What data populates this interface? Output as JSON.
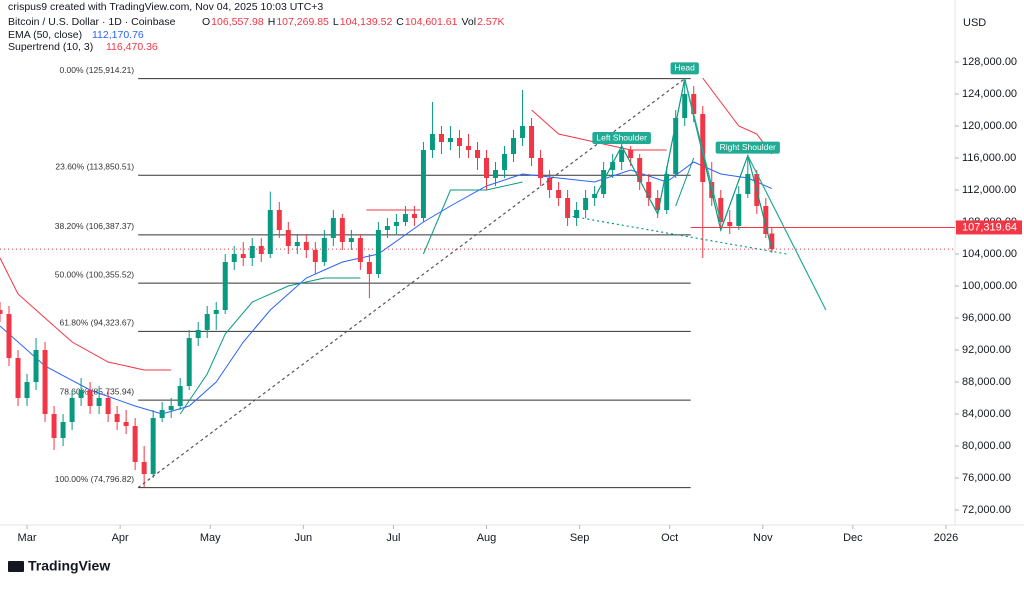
{
  "chart_data": {
    "type": "candlestick",
    "credit": "crispus9 created with TradingView.com, Nov 04, 2025 10:03 UTC+3",
    "symbol": "Bitcoin / U.S. Dollar · 1D · Coinbase",
    "ohlc_fields": [
      {
        "key": "O",
        "value": "106,557.98"
      },
      {
        "key": "H",
        "value": "107,269.85"
      },
      {
        "key": "L",
        "value": "104,139.52"
      },
      {
        "key": "C",
        "value": "104,601.61"
      },
      {
        "key": "Vol",
        "value": "2.57K"
      }
    ],
    "currency": "USD",
    "footer": "TradingView",
    "up_color": "#089981",
    "down_color": "#f23645",
    "xlim": [
      0,
      318
    ],
    "ylim": [
      70125,
      135750
    ],
    "xticks": [
      {
        "value": 9,
        "label": "Mar"
      },
      {
        "value": 40,
        "label": "Apr"
      },
      {
        "value": 70,
        "label": "May"
      },
      {
        "value": 101,
        "label": "Jun"
      },
      {
        "value": 131,
        "label": "Jul"
      },
      {
        "value": 162,
        "label": "Aug"
      },
      {
        "value": 193,
        "label": "Sep"
      },
      {
        "value": 223,
        "label": "Oct"
      },
      {
        "value": 254,
        "label": "Nov"
      },
      {
        "value": 284,
        "label": "Dec"
      },
      {
        "value": 315,
        "label": "2026"
      }
    ],
    "yticks": [
      {
        "value": 72000,
        "label": "72,000.00"
      },
      {
        "value": 76000,
        "label": "76,000.00"
      },
      {
        "value": 80000,
        "label": "80,000.00"
      },
      {
        "value": 84000,
        "label": "84,000.00"
      },
      {
        "value": 88000,
        "label": "88,000.00"
      },
      {
        "value": 92000,
        "label": "92,000.00"
      },
      {
        "value": 96000,
        "label": "96,000.00"
      },
      {
        "value": 100000,
        "label": "100,000.00"
      },
      {
        "value": 104000,
        "label": "104,000.00"
      },
      {
        "value": 108000,
        "label": "108,000.00"
      },
      {
        "value": 112000,
        "label": "112,000.00"
      },
      {
        "value": 116000,
        "label": "116,000.00"
      },
      {
        "value": 120000,
        "label": "120,000.00"
      },
      {
        "value": 124000,
        "label": "124,000.00"
      },
      {
        "value": 128000,
        "label": "128,000.00"
      }
    ],
    "grid": false,
    "x": [
      0,
      3,
      6,
      9,
      12,
      15,
      18,
      21,
      24,
      27,
      30,
      33,
      36,
      39,
      42,
      45,
      48,
      51,
      54,
      57,
      60,
      63,
      66,
      69,
      72,
      75,
      78,
      81,
      84,
      87,
      90,
      93,
      96,
      99,
      102,
      105,
      108,
      111,
      114,
      117,
      120,
      123,
      126,
      129,
      132,
      135,
      138,
      141,
      144,
      147,
      150,
      153,
      156,
      159,
      162,
      165,
      168,
      171,
      174,
      177,
      180,
      183,
      186,
      189,
      192,
      195,
      198,
      201,
      204,
      207,
      210,
      213,
      216,
      219,
      222,
      225,
      228,
      231,
      234,
      237,
      240,
      243,
      246,
      249,
      252,
      255,
      257
    ],
    "ohlc": [
      [
        97000,
        98000,
        95500,
        96500
      ],
      [
        96500,
        97500,
        90000,
        91000
      ],
      [
        91000,
        92000,
        85000,
        86000
      ],
      [
        86000,
        89000,
        85000,
        88000
      ],
      [
        88000,
        93500,
        87000,
        92000
      ],
      [
        92000,
        93000,
        83000,
        84000
      ],
      [
        84000,
        85000,
        79500,
        81000
      ],
      [
        81000,
        84000,
        80000,
        83000
      ],
      [
        83000,
        87000,
        82000,
        86000
      ],
      [
        86000,
        88500,
        85000,
        87000
      ],
      [
        87000,
        88000,
        84000,
        85000
      ],
      [
        85000,
        87500,
        84000,
        86000
      ],
      [
        86000,
        87000,
        83000,
        84000
      ],
      [
        84000,
        85000,
        82000,
        83000
      ],
      [
        83000,
        84500,
        81500,
        82500
      ],
      [
        82500,
        83500,
        77000,
        78000
      ],
      [
        78000,
        80000,
        74800,
        76500
      ],
      [
        76500,
        84500,
        76000,
        83500
      ],
      [
        83500,
        85500,
        83000,
        84500
      ],
      [
        84500,
        86000,
        83500,
        85000
      ],
      [
        85000,
        88500,
        84500,
        87500
      ],
      [
        87500,
        94500,
        87000,
        93500
      ],
      [
        93500,
        95500,
        92500,
        94500
      ],
      [
        94500,
        97500,
        93500,
        96500
      ],
      [
        96500,
        98000,
        94500,
        97000
      ],
      [
        97000,
        104000,
        96500,
        103000
      ],
      [
        103000,
        105000,
        102000,
        104000
      ],
      [
        104000,
        105500,
        102500,
        103500
      ],
      [
        103500,
        106000,
        102500,
        105000
      ],
      [
        105000,
        106000,
        103000,
        104000
      ],
      [
        104000,
        111800,
        103500,
        109500
      ],
      [
        109500,
        110500,
        106000,
        107000
      ],
      [
        107000,
        108000,
        104000,
        105000
      ],
      [
        105000,
        106500,
        104000,
        105500
      ],
      [
        105500,
        106500,
        103500,
        104500
      ],
      [
        104500,
        105500,
        101500,
        103000
      ],
      [
        103000,
        107000,
        102500,
        106000
      ],
      [
        106000,
        109500,
        105000,
        108500
      ],
      [
        108500,
        109000,
        104500,
        105500
      ],
      [
        105500,
        107000,
        104500,
        106000
      ],
      [
        106000,
        106500,
        102000,
        103000
      ],
      [
        103000,
        104000,
        98500,
        101500
      ],
      [
        101500,
        108000,
        101000,
        107000
      ],
      [
        107000,
        108500,
        106000,
        107500
      ],
      [
        107500,
        109000,
        106500,
        108000
      ],
      [
        108000,
        110000,
        107500,
        109000
      ],
      [
        109000,
        110000,
        107500,
        108500
      ],
      [
        108500,
        118000,
        108000,
        117000
      ],
      [
        117000,
        123000,
        116000,
        119000
      ],
      [
        119000,
        120000,
        116500,
        118000
      ],
      [
        118000,
        120000,
        117000,
        118500
      ],
      [
        118500,
        119500,
        116000,
        117500
      ],
      [
        117500,
        119000,
        116000,
        117000
      ],
      [
        117000,
        118000,
        114500,
        116000
      ],
      [
        116000,
        117000,
        112000,
        113500
      ],
      [
        113500,
        115500,
        112500,
        114500
      ],
      [
        114500,
        117500,
        113500,
        116500
      ],
      [
        116500,
        119500,
        115500,
        118500
      ],
      [
        118500,
        124500,
        117500,
        120000
      ],
      [
        120000,
        121000,
        115000,
        116000
      ],
      [
        116000,
        117000,
        112500,
        113500
      ],
      [
        113500,
        114500,
        111000,
        112000
      ],
      [
        112000,
        113000,
        110000,
        111000
      ],
      [
        111000,
        112000,
        107500,
        108500
      ],
      [
        108500,
        110500,
        107500,
        109500
      ],
      [
        109500,
        112000,
        108500,
        111000
      ],
      [
        111000,
        112500,
        110000,
        111500
      ],
      [
        111500,
        115500,
        111000,
        114500
      ],
      [
        114500,
        116500,
        113500,
        115500
      ],
      [
        115500,
        118000,
        114500,
        117000
      ],
      [
        117000,
        117500,
        115000,
        116000
      ],
      [
        116000,
        116500,
        112000,
        113000
      ],
      [
        113000,
        114000,
        110000,
        111000
      ],
      [
        111000,
        112000,
        108500,
        109500
      ],
      [
        109500,
        115000,
        109000,
        114000
      ],
      [
        114000,
        122000,
        113500,
        121000
      ],
      [
        121000,
        126000,
        120000,
        124000
      ],
      [
        124000,
        125000,
        120500,
        121500
      ],
      [
        121500,
        122500,
        103500,
        113000
      ],
      [
        113000,
        115500,
        110000,
        111000
      ],
      [
        111000,
        112000,
        107000,
        108000
      ],
      [
        108000,
        109500,
        106500,
        107500
      ],
      [
        107500,
        112500,
        107000,
        111500
      ],
      [
        111500,
        116000,
        111000,
        114000
      ],
      [
        114000,
        114500,
        109000,
        110000
      ],
      [
        110000,
        111000,
        106000,
        106500
      ],
      [
        106557.98,
        107269.85,
        104139.52,
        104601.61
      ]
    ],
    "ema": {
      "name": "EMA (50, close)",
      "last": "112,170.76",
      "color": "#2962ff",
      "x": [
        0,
        15,
        30,
        45,
        54,
        63,
        72,
        81,
        90,
        102,
        114,
        126,
        141,
        150,
        162,
        174,
        186,
        198,
        210,
        222,
        231,
        240,
        249,
        257
      ],
      "values": [
        95000,
        90000,
        87000,
        85000,
        84000,
        85000,
        88000,
        93000,
        97000,
        101000,
        103000,
        104000,
        108000,
        110000,
        112500,
        114000,
        113500,
        113000,
        114500,
        113000,
        115500,
        114000,
        113500,
        112170.76
      ]
    },
    "supertrend": {
      "name": "Supertrend (10, 3)",
      "last": "116,470.36",
      "segments": [
        {
          "color": "#f23645",
          "x": [
            0,
            6,
            15,
            24,
            36,
            48,
            57
          ],
          "values": [
            103500,
            99000,
            96000,
            93000,
            90500,
            89500,
            89500
          ]
        },
        {
          "color": "#089981",
          "x": [
            60,
            69,
            75,
            84,
            96,
            108,
            120
          ],
          "values": [
            84000,
            89000,
            94000,
            98000,
            100000,
            101000,
            101000
          ]
        },
        {
          "color": "#f23645",
          "x": [
            122,
            130,
            140
          ],
          "values": [
            109500,
            109500,
            109500
          ]
        },
        {
          "color": "#089981",
          "x": [
            141,
            150,
            162,
            174
          ],
          "values": [
            104000,
            112000,
            112000,
            113000
          ]
        },
        {
          "color": "#f23645",
          "x": [
            177,
            186,
            198,
            210,
            222
          ],
          "values": [
            122000,
            119000,
            118000,
            117000,
            117000
          ]
        },
        {
          "color": "#089981",
          "x": [
            225,
            231
          ],
          "values": [
            110000,
            116000
          ]
        },
        {
          "color": "#f23645",
          "x": [
            234,
            246,
            252,
            257
          ],
          "values": [
            126000,
            120000,
            119000,
            116470.36
          ]
        }
      ]
    },
    "fib": {
      "x": [
        46,
        230
      ],
      "levels": [
        {
          "label": "0.00% (125,914.21)",
          "value": 125914.21
        },
        {
          "label": "23.60% (113,850.51)",
          "value": 113850.51
        },
        {
          "label": "38.20% (106,387.37)",
          "value": 106387.37
        },
        {
          "label": "50.00% (100,355.52)",
          "value": 100355.52
        },
        {
          "label": "61.80% (94,323.67)",
          "value": 94323.67
        },
        {
          "label": "78.60% (85,735.94)",
          "value": 85735.94
        },
        {
          "label": "100.00% (74,796.82)",
          "value": 74796.82
        }
      ]
    },
    "trendlines": [
      {
        "color": "#555",
        "dash": "3 3",
        "x": [
          46,
          228
        ],
        "values": [
          74796.82,
          125914.21
        ]
      },
      {
        "color": "#089981",
        "dash": "2 3",
        "x": [
          189,
          262
        ],
        "values": [
          108800,
          104000
        ]
      },
      {
        "color": "#089981",
        "dash": "",
        "x": [
          198,
          207,
          219,
          228,
          240,
          249,
          257
        ],
        "values": [
          111000,
          117500,
          109000,
          125914.21,
          107000,
          116300,
          104600
        ]
      },
      {
        "color": "#22ab94",
        "dash": "",
        "x": [
          249,
          275
        ],
        "values": [
          116300,
          97000
        ]
      },
      {
        "color": "#22ab94",
        "dash": "",
        "x": [
          228,
          240
        ],
        "values": [
          125914.21,
          108000
        ]
      }
    ],
    "pattern_labels": [
      {
        "text": "Left Shoulder",
        "x": 207,
        "value": 118500
      },
      {
        "text": "Head",
        "x": 228,
        "value": 127200
      },
      {
        "text": "Right Shoulder",
        "x": 249,
        "value": 117300
      }
    ],
    "level_line": {
      "label": "107,319.64",
      "value": 107319.64,
      "color": "#f23645"
    }
  }
}
